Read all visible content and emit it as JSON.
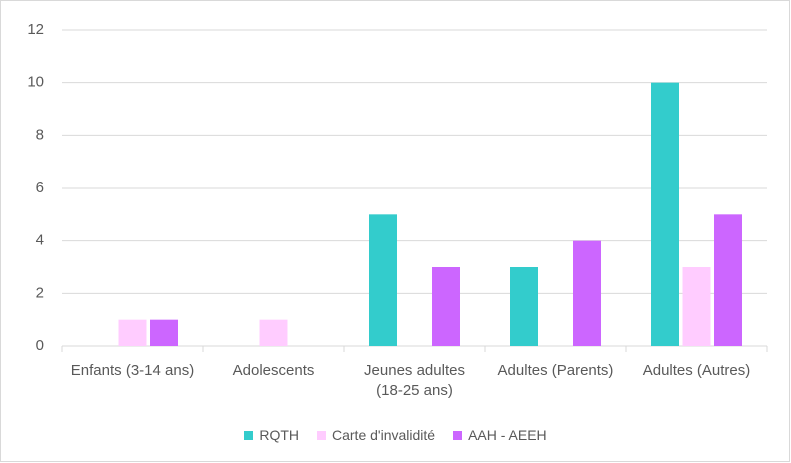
{
  "chart_data": {
    "type": "bar",
    "categories": [
      "Enfants (3-14 ans)",
      "Adolescents",
      "Jeunes adultes (18-25 ans)",
      "Adultes (Parents)",
      "Adultes (Autres)"
    ],
    "series": [
      {
        "name": "RQTH",
        "color": "#33cccc",
        "values": [
          0,
          0,
          5,
          3,
          10
        ]
      },
      {
        "name": "Carte d'invalidité",
        "color": "#ffccff",
        "values": [
          1,
          1,
          0,
          0,
          3
        ]
      },
      {
        "name": "AAH - AEEH",
        "color": "#cc66ff",
        "values": [
          1,
          0,
          3,
          4,
          5
        ]
      }
    ],
    "ylim": [
      0,
      12
    ],
    "yticks": [
      0,
      2,
      4,
      6,
      8,
      10,
      12
    ],
    "grid": true,
    "legend": "bottom"
  }
}
